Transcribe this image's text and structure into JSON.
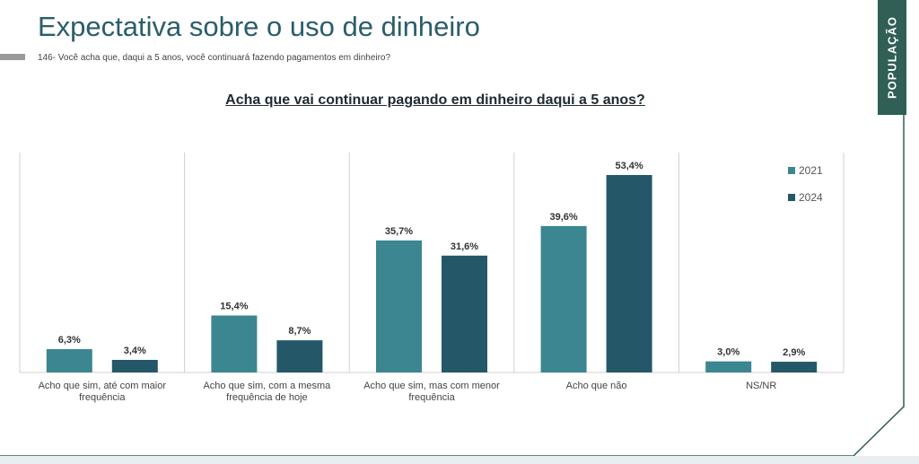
{
  "page": {
    "title": "Expectativa sobre o uso de dinheiro",
    "question": "146- Você acha que, daqui a 5 anos, você continuará fazendo pagamentos em dinheiro?",
    "side_tab": "POPULAÇÃO"
  },
  "chart_data": {
    "type": "bar",
    "title": "Acha que vai continuar pagando em dinheiro daqui a 5 anos?",
    "categories": [
      [
        "Acho que sim, até com maior",
        "frequência"
      ],
      [
        "Acho que sim, com a mesma",
        "frequência de hoje"
      ],
      [
        "Acho que sim, mas com menor",
        "frequência"
      ],
      [
        "Acho que não"
      ],
      [
        "NS/NR"
      ]
    ],
    "series": [
      {
        "name": "2021",
        "color": "#3b8690",
        "values": [
          6.3,
          15.4,
          35.7,
          39.6,
          3.0
        ],
        "labels": [
          "6,3%",
          "15,4%",
          "35,7%",
          "39,6%",
          "3,0%"
        ]
      },
      {
        "name": "2024",
        "color": "#245869",
        "values": [
          3.4,
          8.7,
          31.6,
          53.4,
          2.9
        ],
        "labels": [
          "3,4%",
          "8,7%",
          "31,6%",
          "53,4%",
          "2,9%"
        ]
      }
    ],
    "ylim": [
      0,
      53.4
    ],
    "legend_position": "top-right",
    "grid": false,
    "category_separators": true
  },
  "colors": {
    "title": "#2a5d6b",
    "side_tab": "#2f5f55",
    "frame_line": "#2f5f55",
    "separator": "#d0d0d0"
  }
}
